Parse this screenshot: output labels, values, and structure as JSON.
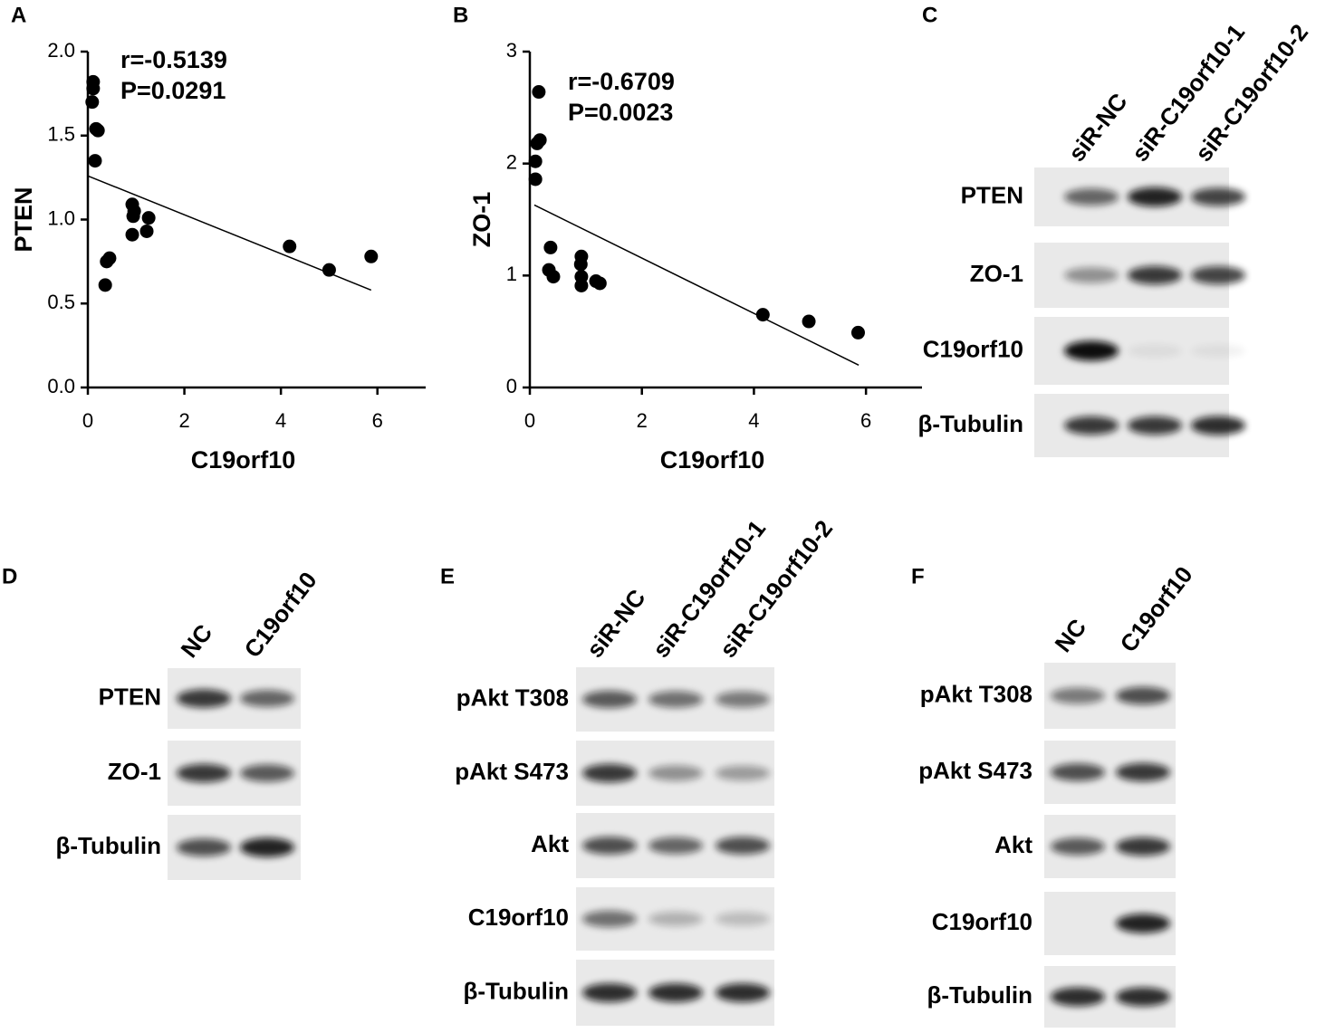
{
  "chart_data": [
    {
      "type": "scatter",
      "panel": "A",
      "x_label": "C19orf10",
      "y_label": "PTEN",
      "annotations": [
        "r=-0.5139",
        "P=0.0291"
      ],
      "x": [
        0.11,
        0.11,
        0.09,
        0.17,
        0.21,
        0.15,
        0.92,
        0.96,
        0.94,
        1.26,
        0.92,
        1.22,
        0.45,
        0.39,
        0.36,
        4.18,
        5.0,
        5.87
      ],
      "y": [
        1.82,
        1.78,
        1.7,
        1.54,
        1.53,
        1.35,
        1.09,
        1.05,
        1.02,
        1.01,
        0.91,
        0.93,
        0.77,
        0.75,
        0.61,
        0.84,
        0.7,
        0.78
      ],
      "color": "#000000",
      "fit_line": {
        "x": [
          0,
          5.87
        ],
        "y": [
          1.26,
          0.58
        ]
      },
      "xlim": [
        0,
        7
      ],
      "ylim": [
        0,
        2
      ],
      "xticks": [
        0,
        2,
        4,
        6
      ],
      "yticks": [
        {
          "value": 0,
          "label": "0.0"
        },
        {
          "value": 0.5,
          "label": "0.5"
        },
        {
          "value": 1,
          "label": "1.0"
        },
        {
          "value": 1.5,
          "label": "1.5"
        },
        {
          "value": 2,
          "label": "2.0"
        }
      ]
    },
    {
      "type": "scatter",
      "panel": "B",
      "x_label": "C19orf10",
      "y_label": "ZO-1",
      "annotations": [
        "r=-0.6709",
        "P=0.0023"
      ],
      "x": [
        0.16,
        0.18,
        0.13,
        0.1,
        0.1,
        0.37,
        0.34,
        0.42,
        0.92,
        0.91,
        0.92,
        0.92,
        1.18,
        1.25,
        4.16,
        4.98,
        5.86
      ],
      "y": [
        2.64,
        2.21,
        2.18,
        2.02,
        1.86,
        1.25,
        1.05,
        0.99,
        1.17,
        1.1,
        0.99,
        0.91,
        0.95,
        0.93,
        0.65,
        0.59,
        0.49
      ],
      "color": "#000000",
      "fit_line": {
        "x": [
          0.08,
          5.87
        ],
        "y": [
          1.63,
          0.2
        ]
      },
      "xlim": [
        0,
        7
      ],
      "ylim": [
        0,
        3
      ],
      "xticks": [
        0,
        2,
        4,
        6
      ],
      "yticks": [
        0,
        1,
        2,
        3
      ]
    }
  ],
  "blots": [
    {
      "panel": "C",
      "lanes": [
        "siR-NC",
        "siR-C19orf10-1",
        "siR-C19orf10-2"
      ],
      "rows": [
        "PTEN",
        "ZO-1",
        "C19orf10",
        "β-Tubulin"
      ]
    },
    {
      "panel": "D",
      "lanes": [
        "NC",
        "C19orf10"
      ],
      "rows": [
        "PTEN",
        "ZO-1",
        "β-Tubulin"
      ]
    },
    {
      "panel": "E",
      "lanes": [
        "siR-NC",
        "siR-C19orf10-1",
        "siR-C19orf10-2"
      ],
      "rows": [
        "pAkt T308",
        "pAkt S473",
        "Akt",
        "C19orf10",
        "β-Tubulin"
      ]
    },
    {
      "panel": "F",
      "lanes": [
        "NC",
        "C19orf10"
      ],
      "rows": [
        "pAkt T308",
        "pAkt S473",
        "Akt",
        "C19orf10",
        "β-Tubulin"
      ]
    }
  ]
}
